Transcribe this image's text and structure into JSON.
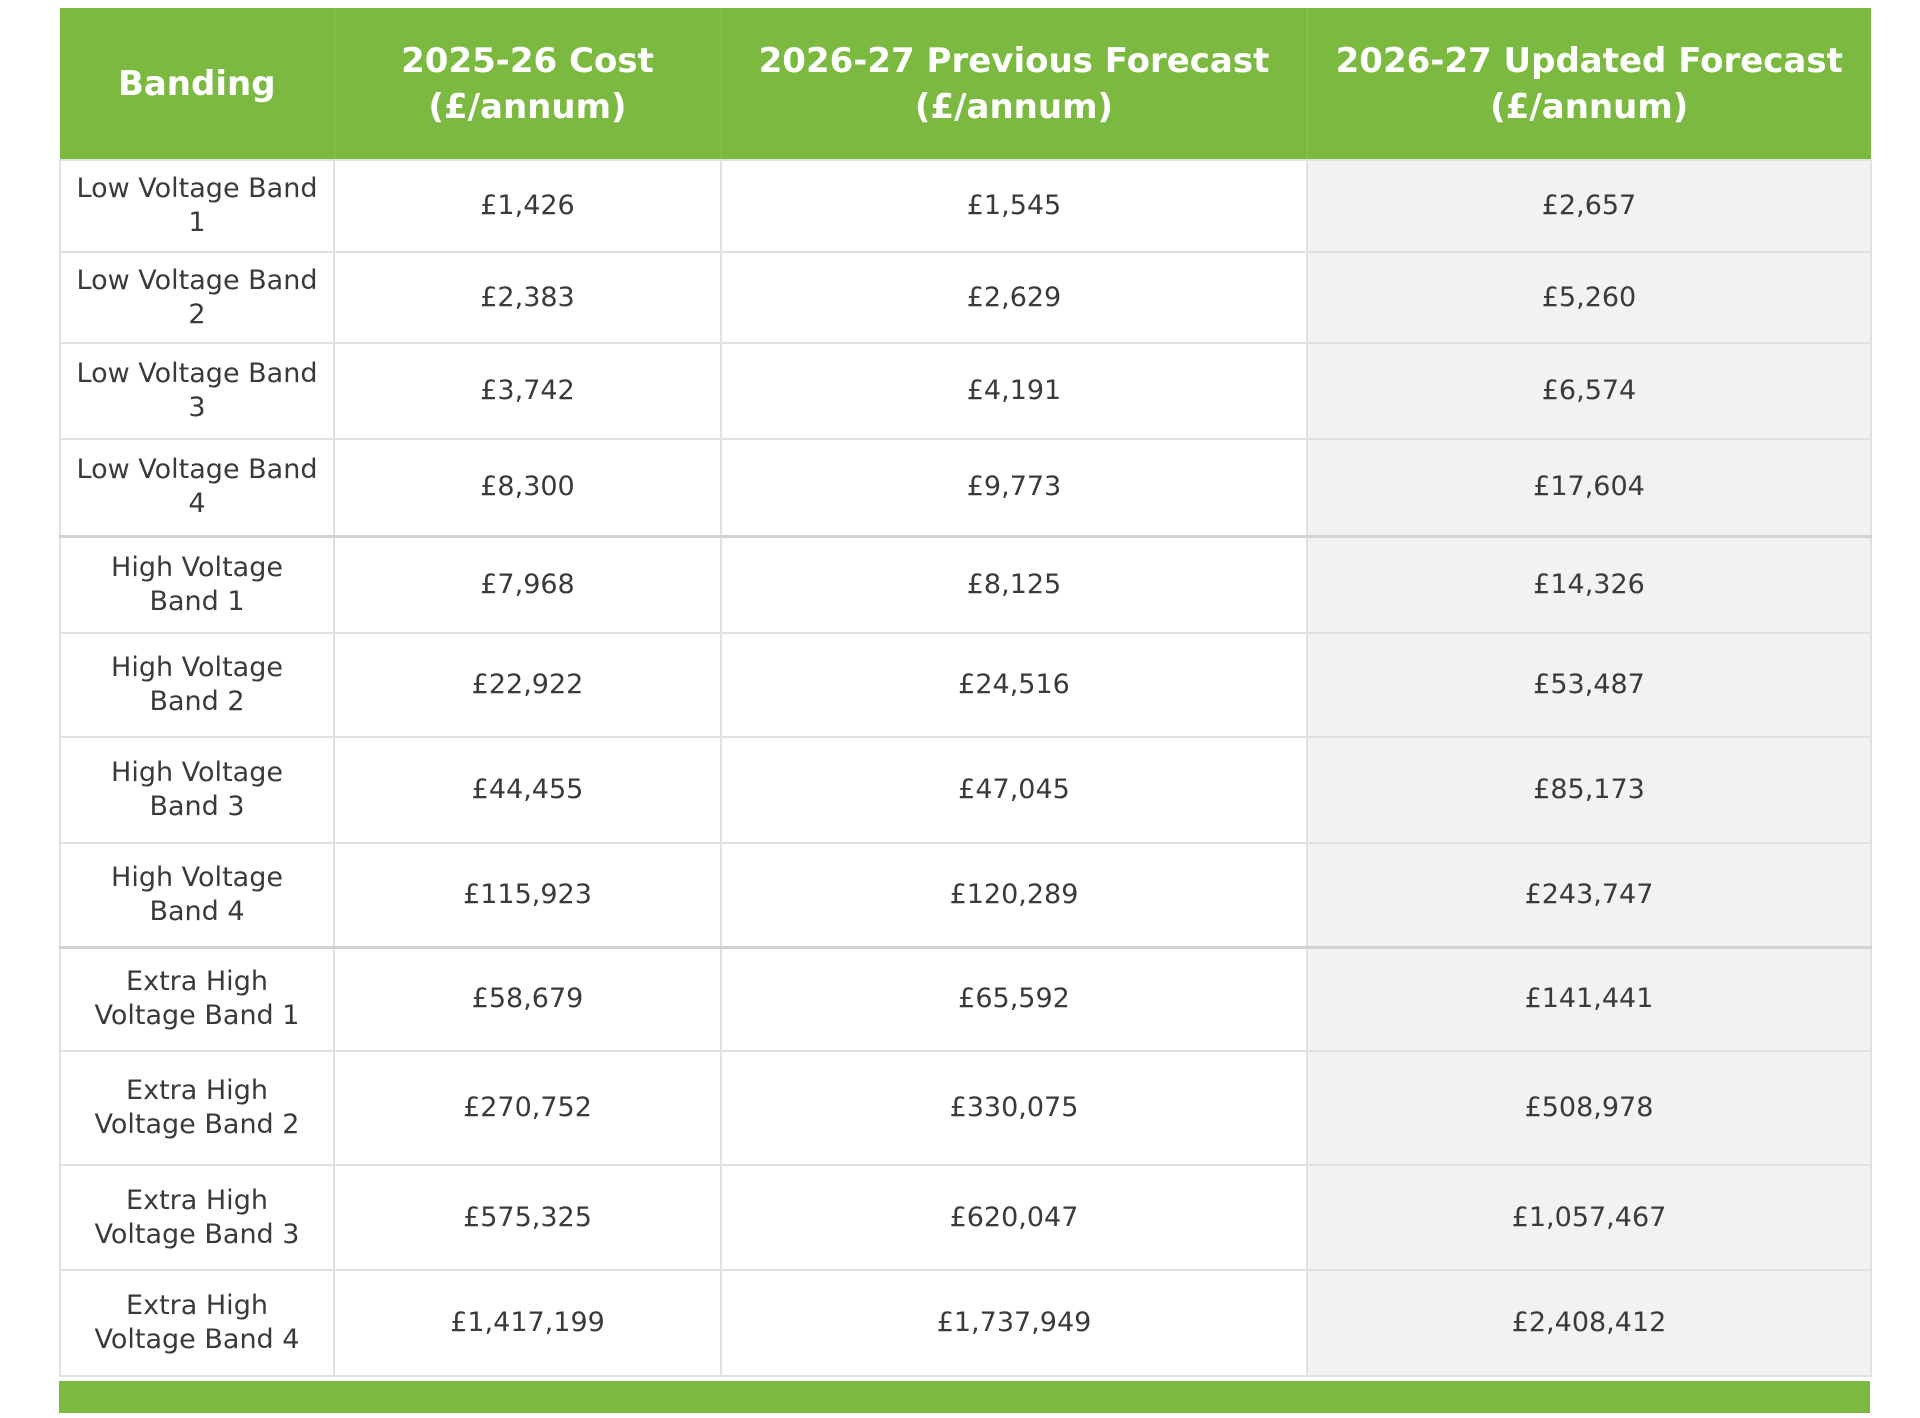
{
  "table": {
    "headers": [
      "Banding",
      "2025-26 Cost (£/annum)",
      "2026-27 Previous Forecast (£/annum)",
      "2026-27 Updated Forecast (£/annum)"
    ],
    "rows": [
      {
        "band": "Low Voltage Band 1",
        "cost_2025_26": "£1,426",
        "previous_forecast_2026_27": "£1,545",
        "updated_forecast_2026_27": "£2,657"
      },
      {
        "band": "Low Voltage Band 2",
        "cost_2025_26": "£2,383",
        "previous_forecast_2026_27": "£2,629",
        "updated_forecast_2026_27": "£5,260"
      },
      {
        "band": "Low Voltage Band 3",
        "cost_2025_26": "£3,742",
        "previous_forecast_2026_27": "£4,191",
        "updated_forecast_2026_27": "£6,574"
      },
      {
        "band": "Low Voltage Band 4",
        "cost_2025_26": "£8,300",
        "previous_forecast_2026_27": "£9,773",
        "updated_forecast_2026_27": "£17,604"
      },
      {
        "band": "High Voltage Band 1",
        "cost_2025_26": "£7,968",
        "previous_forecast_2026_27": "£8,125",
        "updated_forecast_2026_27": "£14,326"
      },
      {
        "band": "High Voltage Band 2",
        "cost_2025_26": "£22,922",
        "previous_forecast_2026_27": "£24,516",
        "updated_forecast_2026_27": "£53,487"
      },
      {
        "band": "High Voltage Band 3",
        "cost_2025_26": "£44,455",
        "previous_forecast_2026_27": "£47,045",
        "updated_forecast_2026_27": "£85,173"
      },
      {
        "band": "High Voltage Band 4",
        "cost_2025_26": "£115,923",
        "previous_forecast_2026_27": "£120,289",
        "updated_forecast_2026_27": "£243,747"
      },
      {
        "band": "Extra High Voltage Band 1",
        "cost_2025_26": "£58,679",
        "previous_forecast_2026_27": "£65,592",
        "updated_forecast_2026_27": "£141,441"
      },
      {
        "band": "Extra High Voltage Band 2",
        "cost_2025_26": "£270,752",
        "previous_forecast_2026_27": "£330,075",
        "updated_forecast_2026_27": "£508,978"
      },
      {
        "band": "Extra High Voltage Band 3",
        "cost_2025_26": "£575,325",
        "previous_forecast_2026_27": "£620,047",
        "updated_forecast_2026_27": "£1,057,467"
      },
      {
        "band": "Extra High Voltage Band 4",
        "cost_2025_26": "£1,417,199",
        "previous_forecast_2026_27": "£1,737,949",
        "updated_forecast_2026_27": "£2,408,412"
      }
    ]
  },
  "colors": {
    "header_bg": "#7cb940",
    "header_text": "#ffffff",
    "updated_column_bg": "#f2f2f2",
    "border": "#e1e1e1",
    "body_text": "#3a3a3a"
  }
}
